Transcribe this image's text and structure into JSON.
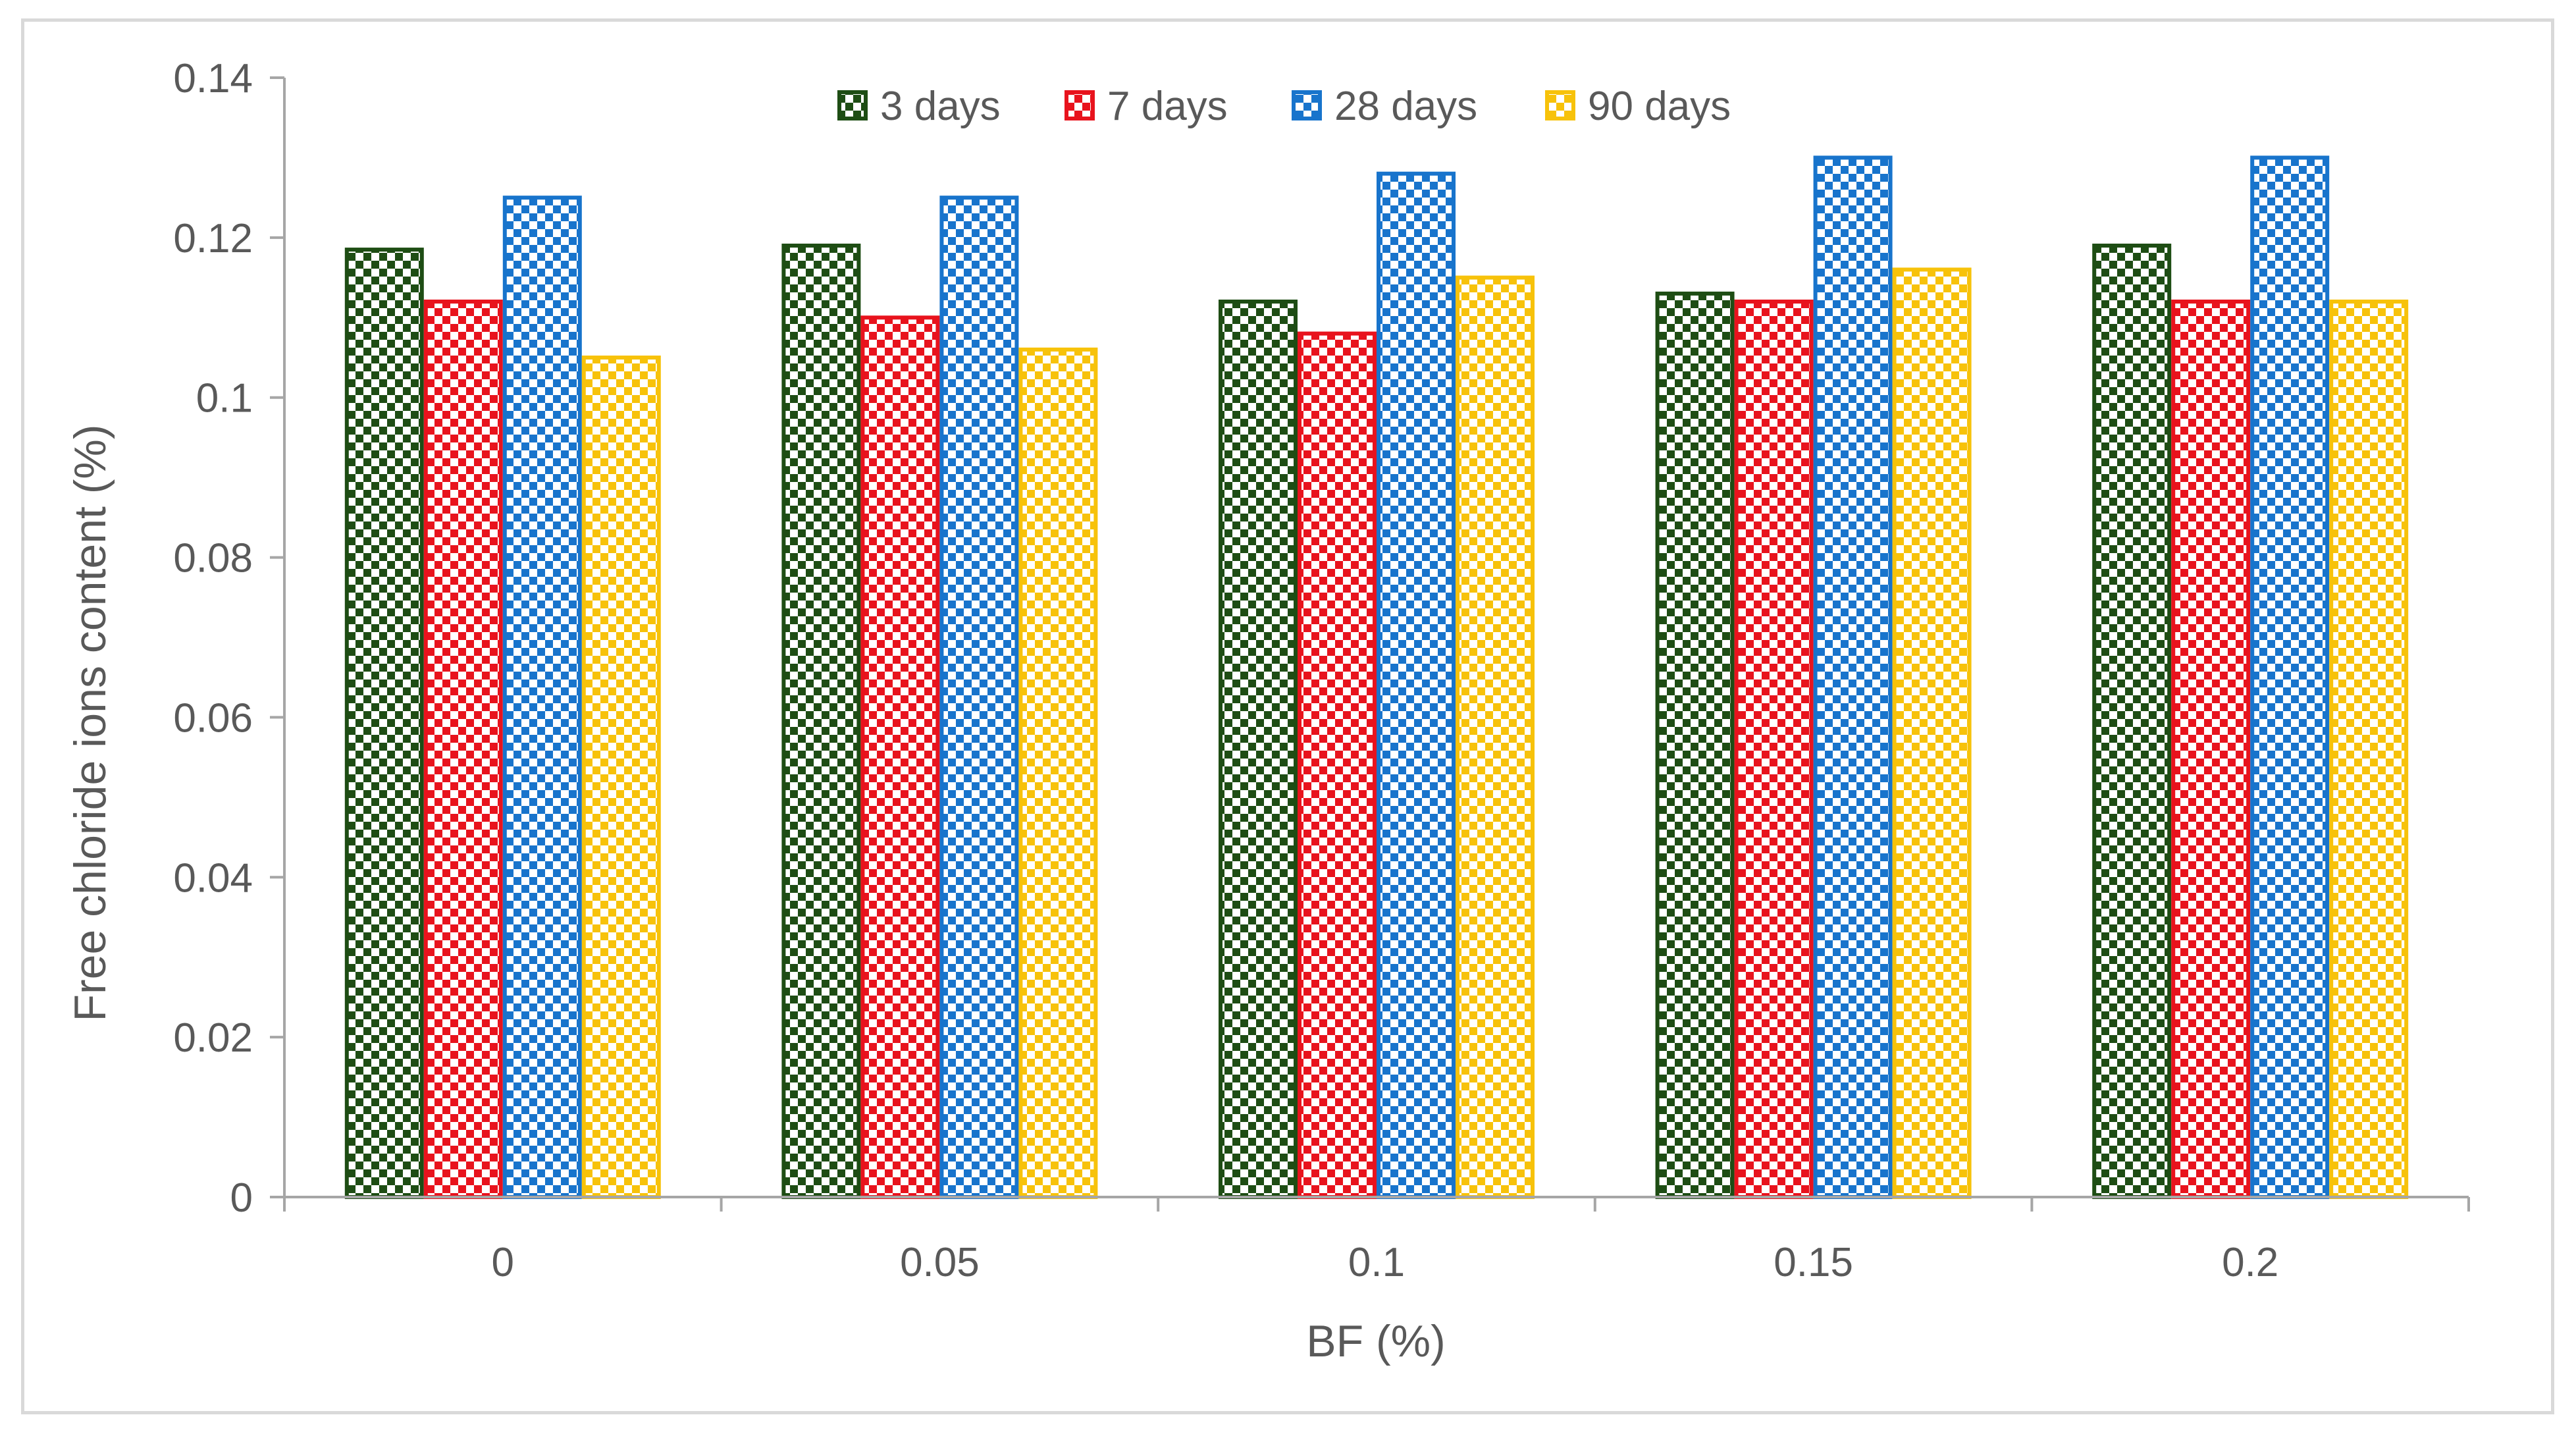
{
  "chart_data": {
    "type": "bar",
    "title": "",
    "xlabel": "BF (%)",
    "ylabel": "Free chloride ions content (%)",
    "ylim": [
      0,
      0.14
    ],
    "yticks": [
      "0",
      "0.02",
      "0.04",
      "0.06",
      "0.08",
      "0.1",
      "0.12",
      "0.14"
    ],
    "categories": [
      "0",
      "0.05",
      "0.1",
      "0.15",
      "0.2"
    ],
    "grid": false,
    "legend_position": "top",
    "series": [
      {
        "name": "3 days",
        "color": "#1e4d14",
        "values": [
          0.1185,
          0.119,
          0.112,
          0.113,
          0.119
        ]
      },
      {
        "name": "7 days",
        "color": "#e8131d",
        "values": [
          0.112,
          0.11,
          0.108,
          0.112,
          0.112
        ]
      },
      {
        "name": "28 days",
        "color": "#1874cc",
        "values": [
          0.125,
          0.125,
          0.128,
          0.13,
          0.13
        ]
      },
      {
        "name": "90 days",
        "color": "#f7c20a",
        "values": [
          0.105,
          0.106,
          0.115,
          0.116,
          0.112
        ]
      }
    ]
  }
}
